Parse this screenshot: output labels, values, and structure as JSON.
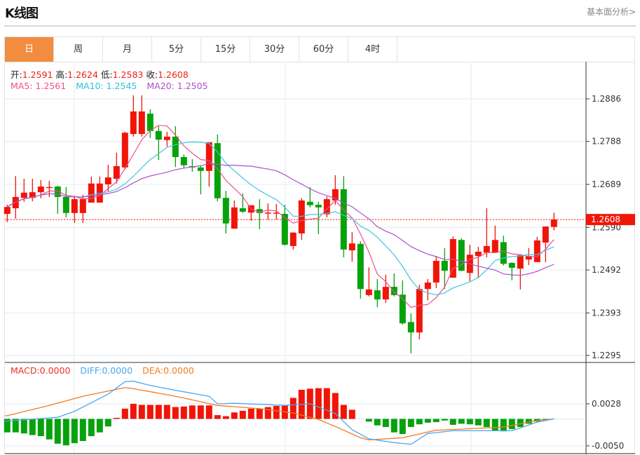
{
  "header": {
    "title": "K线图",
    "link": "基本面分析>"
  },
  "tabs": [
    {
      "label": "日",
      "active": true
    },
    {
      "label": "周"
    },
    {
      "label": "月"
    },
    {
      "label": "5分"
    },
    {
      "label": "15分"
    },
    {
      "label": "30分"
    },
    {
      "label": "60分"
    },
    {
      "label": "4时"
    }
  ],
  "ohlc_info": {
    "open_label": "开:",
    "open": "1.2591",
    "high_label": "高:",
    "high": "1.2624",
    "low_label": "低:",
    "low": "1.2583",
    "close_label": "收:",
    "close": "1.2608"
  },
  "ma_info": {
    "ma5": "MA5: 1.2561",
    "ma10": "MA10: 1.2545",
    "ma20": "MA20: 1.2505"
  },
  "macd_info": {
    "macd": "MACD:0.0000",
    "diff": "DIFF:0.0000",
    "dea": "DEA:0.0000"
  },
  "colors": {
    "up": "#f01508",
    "down": "#06a20c",
    "ma5": "#f0508a",
    "ma10": "#3ec6e0",
    "ma20": "#b050c8",
    "diff": "#4aa6f0",
    "dea": "#f07a22",
    "accent": "#f28c3e"
  },
  "chart_data": {
    "type": "candlestick",
    "price_axis": {
      "ticks": [
        "1.2886",
        "1.2788",
        "1.2689",
        "1.2590",
        "1.2492",
        "1.2393",
        "1.2295"
      ]
    },
    "current_price": "1.2608",
    "candles": [
      [
        1.2621,
        1.2637,
        1.2642,
        1.2602
      ],
      [
        1.2634,
        1.266,
        1.2708,
        1.261
      ],
      [
        1.2658,
        1.267,
        1.2702,
        1.2649
      ],
      [
        1.2658,
        1.2671,
        1.2702,
        1.265
      ],
      [
        1.2671,
        1.2684,
        1.2699,
        1.2657
      ],
      [
        1.2682,
        1.2683,
        1.2697,
        1.266
      ],
      [
        1.2684,
        1.266,
        1.2686,
        1.2621
      ],
      [
        1.266,
        1.2623,
        1.2683,
        1.2613
      ],
      [
        1.2623,
        1.2655,
        1.2663,
        1.26
      ],
      [
        1.2623,
        1.2655,
        1.2665,
        1.26
      ],
      [
        1.2647,
        1.2691,
        1.2707,
        1.2647
      ],
      [
        1.2647,
        1.2691,
        1.2707,
        1.2647
      ],
      [
        1.2689,
        1.2705,
        1.2734,
        1.2673
      ],
      [
        1.2702,
        1.2731,
        1.2762,
        1.2691
      ],
      [
        1.2728,
        1.2808,
        1.281,
        1.2723
      ],
      [
        1.2805,
        1.2857,
        1.2894,
        1.2799
      ],
      [
        1.2805,
        1.2857,
        1.2894,
        1.2799
      ],
      [
        1.2852,
        1.2812,
        1.2862,
        1.2796
      ],
      [
        1.2812,
        1.2792,
        1.2823,
        1.2745
      ],
      [
        1.2791,
        1.2799,
        1.281,
        1.2776
      ],
      [
        1.2799,
        1.2752,
        1.2823,
        1.2729
      ],
      [
        1.2752,
        1.2733,
        1.2758,
        1.2726
      ],
      [
        1.2731,
        1.2728,
        1.2747,
        1.2718
      ],
      [
        1.2728,
        1.272,
        1.2731,
        1.2666
      ],
      [
        1.272,
        1.2786,
        1.2786,
        1.2684
      ],
      [
        1.2784,
        1.2657,
        1.2804,
        1.265
      ],
      [
        1.2658,
        1.2599,
        1.2674,
        1.2576
      ],
      [
        1.2587,
        1.2636,
        1.2652,
        1.2587
      ],
      [
        1.2634,
        1.2626,
        1.2668,
        1.2623
      ],
      [
        1.2624,
        1.2641,
        1.2641,
        1.2605
      ],
      [
        1.2632,
        1.2623,
        1.2655,
        1.2586
      ],
      [
        1.2623,
        1.2624,
        1.2645,
        1.2608
      ],
      [
        1.2623,
        1.2624,
        1.2644,
        1.2608
      ],
      [
        1.2621,
        1.255,
        1.2642,
        1.2548
      ],
      [
        1.2547,
        1.2578,
        1.2579,
        1.2539
      ],
      [
        1.2576,
        1.2652,
        1.2657,
        1.2561
      ],
      [
        1.2649,
        1.2641,
        1.2683,
        1.2636
      ],
      [
        1.2642,
        1.2636,
        1.2649,
        1.2574
      ],
      [
        1.262,
        1.2655,
        1.2661,
        1.2613
      ],
      [
        1.2652,
        1.2678,
        1.271,
        1.2642
      ],
      [
        1.2678,
        1.2539,
        1.2708,
        1.2521
      ],
      [
        1.2537,
        1.2553,
        1.2579,
        1.2511
      ],
      [
        1.2552,
        1.2448,
        1.2558,
        1.2426
      ],
      [
        1.2434,
        1.2447,
        1.2498,
        1.2431
      ],
      [
        1.2445,
        1.2424,
        1.2471,
        1.2406
      ],
      [
        1.2424,
        1.2453,
        1.2481,
        1.2416
      ],
      [
        1.2453,
        1.2434,
        1.2484,
        1.2431
      ],
      [
        1.2435,
        1.2369,
        1.2468,
        1.2366
      ],
      [
        1.2372,
        1.2348,
        1.2392,
        1.23
      ],
      [
        1.2348,
        1.2448,
        1.2458,
        1.2332
      ],
      [
        1.2448,
        1.2463,
        1.2471,
        1.2422
      ],
      [
        1.2463,
        1.2513,
        1.2524,
        1.245
      ],
      [
        1.2513,
        1.249,
        1.2542,
        1.2448
      ],
      [
        1.2474,
        1.2563,
        1.2569,
        1.2474
      ],
      [
        1.2561,
        1.249,
        1.2565,
        1.2489
      ],
      [
        1.2485,
        1.2527,
        1.255,
        1.2466
      ],
      [
        1.2524,
        1.2534,
        1.2545,
        1.2473
      ],
      [
        1.2532,
        1.2547,
        1.2634,
        1.2521
      ],
      [
        1.2532,
        1.2561,
        1.2594,
        1.2532
      ],
      [
        1.2556,
        1.2506,
        1.2571,
        1.2502
      ],
      [
        1.2508,
        1.2497,
        1.251,
        1.2468
      ],
      [
        1.2495,
        1.2526,
        1.2526,
        1.2447
      ],
      [
        1.2516,
        1.2524,
        1.2542,
        1.2503
      ],
      [
        1.251,
        1.256,
        1.2568,
        1.251
      ],
      [
        1.2555,
        1.2592,
        1.2592,
        1.251
      ],
      [
        1.2591,
        1.2608,
        1.2624,
        1.2583
      ]
    ],
    "macd": {
      "axis_ticks": [
        "0.0028",
        "-0.0050"
      ],
      "histogram": [
        -0.0025,
        -0.0025,
        -0.0027,
        -0.003,
        -0.0032,
        -0.0038,
        -0.0046,
        -0.0049,
        -0.0045,
        -0.0041,
        -0.0032,
        -0.0025,
        -0.0014,
        0.0002,
        0.0019,
        0.0028,
        0.0026,
        0.0026,
        0.0026,
        0.0026,
        0.0022,
        0.0023,
        0.0025,
        0.0025,
        0.0025,
        0.0007,
        0.0005,
        0.0012,
        0.0015,
        0.0019,
        0.0019,
        0.0022,
        0.0024,
        0.0026,
        0.0039,
        0.0054,
        0.0056,
        0.0057,
        0.0057,
        0.0048,
        0.0026,
        0.0017,
        0,
        -0.0005,
        -0.0012,
        -0.0015,
        -0.0025,
        -0.0028,
        -0.0015,
        -0.001,
        -0.0007,
        -0.0006,
        -0.0003,
        -0.0011,
        -0.0009,
        -0.001,
        -0.0012,
        -0.0015,
        -0.0022,
        -0.0023,
        -0.0019,
        -0.0015,
        -0.0009,
        -0.0005,
        -0.0002,
        0
      ],
      "diff": [
        [
          0,
          -0.0004
        ],
        [
          6,
          0.0003
        ],
        [
          8,
          0.0014
        ],
        [
          12,
          0.0046
        ],
        [
          14,
          0.0069
        ],
        [
          15,
          0.007
        ],
        [
          17,
          0.0062
        ],
        [
          20,
          0.0053
        ],
        [
          24,
          0.0042
        ],
        [
          25,
          0.0028
        ],
        [
          27,
          0.0029
        ],
        [
          33,
          0.0025
        ],
        [
          36,
          0.0028
        ],
        [
          39,
          0.001
        ],
        [
          41,
          -0.002
        ],
        [
          43,
          -0.0037
        ],
        [
          46,
          -0.0044
        ],
        [
          48,
          -0.0047
        ],
        [
          50,
          -0.0027
        ],
        [
          53,
          -0.0022
        ],
        [
          55,
          -0.0022
        ],
        [
          60,
          -0.0022
        ],
        [
          63,
          -0.0006
        ],
        [
          65,
          0
        ]
      ],
      "dea": [
        [
          0,
          0.0006
        ],
        [
          5,
          0.0025
        ],
        [
          9,
          0.0042
        ],
        [
          14,
          0.0058
        ],
        [
          15,
          0.0056
        ],
        [
          20,
          0.0042
        ],
        [
          25,
          0.0025
        ],
        [
          30,
          0.0019
        ],
        [
          34,
          0.0011
        ],
        [
          37,
          -0.0001
        ],
        [
          39,
          -0.0014
        ],
        [
          42,
          -0.0035
        ],
        [
          43,
          -0.0039
        ],
        [
          47,
          -0.0035
        ],
        [
          51,
          -0.0021
        ],
        [
          54,
          -0.0019
        ],
        [
          59,
          -0.0015
        ],
        [
          63,
          -0.0003
        ],
        [
          65,
          0
        ]
      ]
    }
  }
}
